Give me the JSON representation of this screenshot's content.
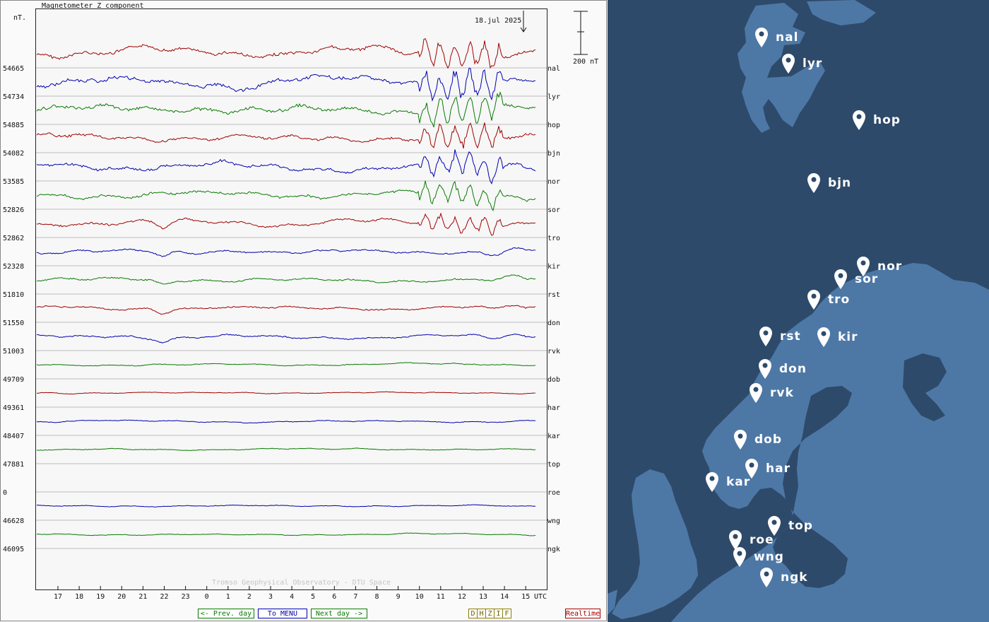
{
  "chart": {
    "title": "Magnetometer Z component",
    "unit_label": "nT.",
    "date_label": "18.jul 2025",
    "scale_label": "200 nT",
    "watermark": "Tromso Geophysical Observatory - DTU Space",
    "utc_label": "UTC",
    "x_tick_labels": [
      "17",
      "18",
      "19",
      "20",
      "21",
      "22",
      "23",
      "0",
      "1",
      "2",
      "3",
      "4",
      "5",
      "6",
      "7",
      "8",
      "9",
      "10",
      "11",
      "12",
      "13",
      "14",
      "15"
    ],
    "stations": [
      {
        "code": "nal",
        "baseline": "54665",
        "color": "#a00000"
      },
      {
        "code": "lyr",
        "baseline": "54734",
        "color": "#0000b0"
      },
      {
        "code": "hop",
        "baseline": "54885",
        "color": "#087a00"
      },
      {
        "code": "bjn",
        "baseline": "54082",
        "color": "#a00000"
      },
      {
        "code": "nor",
        "baseline": "53585",
        "color": "#0000b0"
      },
      {
        "code": "sor",
        "baseline": "52826",
        "color": "#087a00"
      },
      {
        "code": "tro",
        "baseline": "52862",
        "color": "#a00000"
      },
      {
        "code": "kir",
        "baseline": "52328",
        "color": "#0000b0"
      },
      {
        "code": "rst",
        "baseline": "51810",
        "color": "#087a00"
      },
      {
        "code": "don",
        "baseline": "51550",
        "color": "#a00000"
      },
      {
        "code": "rvk",
        "baseline": "51003",
        "color": "#0000b0"
      },
      {
        "code": "dob",
        "baseline": "49709",
        "color": "#087a00"
      },
      {
        "code": "har",
        "baseline": "49361",
        "color": "#a00000"
      },
      {
        "code": "kar",
        "baseline": "48407",
        "color": "#0000b0"
      },
      {
        "code": "top",
        "baseline": "47881",
        "color": "#087a00"
      },
      {
        "code": "roe",
        "baseline": "0",
        "color": "#a00000"
      },
      {
        "code": "wng",
        "baseline": "46628",
        "color": "#0000b0"
      },
      {
        "code": "ngk",
        "baseline": "46095",
        "color": "#087a00"
      }
    ]
  },
  "nav": {
    "prev": "<- Prev. day",
    "menu": "To MENU",
    "next": "Next day ->",
    "components": [
      "D",
      "H",
      "Z",
      "I",
      "F"
    ],
    "realtime": "Realtime"
  },
  "map": {
    "colors": {
      "sea": "#2e4a6a",
      "land": "#4d78a6",
      "pin": "#ffffff"
    },
    "stations": [
      "nal",
      "lyr",
      "hop",
      "bjn",
      "nor",
      "sor",
      "tro",
      "rst",
      "kir",
      "don",
      "rvk",
      "dob",
      "har",
      "kar",
      "top",
      "roe",
      "wng",
      "ngk"
    ]
  }
}
